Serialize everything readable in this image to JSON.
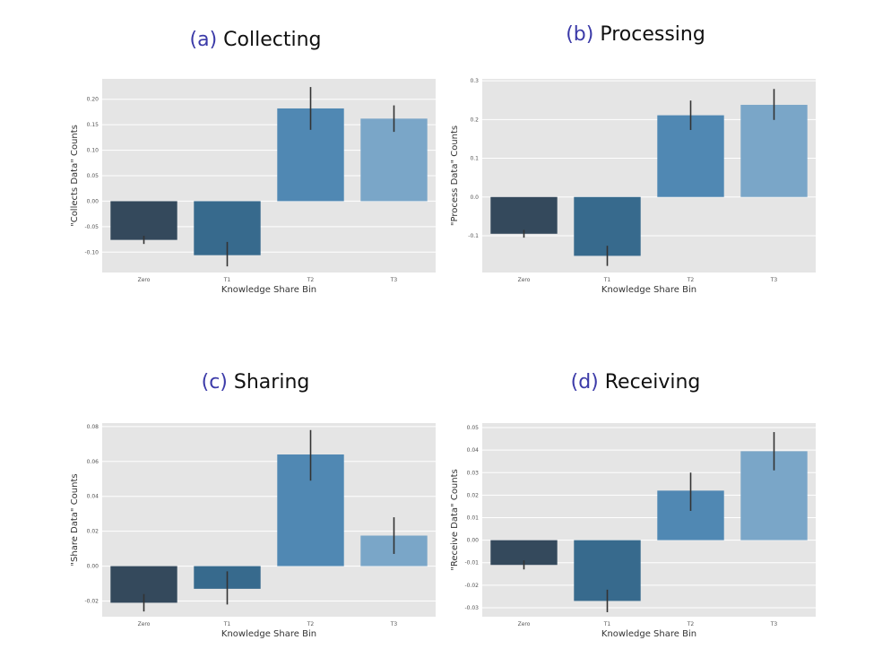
{
  "chart_data": [
    {
      "type": "bar",
      "title_letter": "(a)",
      "title_text": "Collecting",
      "xlabel": "Knowledge Share Bin",
      "ylabel": "\"Collects Data\" Counts",
      "categories": [
        "Zero",
        "T1",
        "T2",
        "T3"
      ],
      "values": [
        -0.076,
        -0.106,
        0.182,
        0.162
      ],
      "err_low": [
        -0.084,
        -0.128,
        0.14,
        0.136
      ],
      "err_high": [
        -0.068,
        -0.08,
        0.224,
        0.188
      ],
      "ylim": [
        -0.14,
        0.24
      ],
      "yticks": [
        -0.1,
        -0.05,
        0.0,
        0.05,
        0.1,
        0.15,
        0.2
      ],
      "ytick_labels": [
        "-0.10",
        "-0.05",
        "0.00",
        "0.05",
        "0.10",
        "0.15",
        "0.20"
      ],
      "grid": true,
      "bar_colors": [
        "#34495c",
        "#376a8d",
        "#5088b3",
        "#7aa6c8"
      ]
    },
    {
      "type": "bar",
      "title_letter": "(b)",
      "title_text": "Processing",
      "xlabel": "Knowledge Share Bin",
      "ylabel": "\"Process Data\" Counts",
      "categories": [
        "Zero",
        "T1",
        "T2",
        "T3"
      ],
      "values": [
        -0.095,
        -0.152,
        0.211,
        0.238
      ],
      "err_low": [
        -0.105,
        -0.178,
        0.173,
        0.199
      ],
      "err_high": [
        -0.085,
        -0.126,
        0.249,
        0.279
      ],
      "ylim": [
        -0.195,
        0.305
      ],
      "yticks": [
        -0.1,
        0.0,
        0.1,
        0.2,
        0.3
      ],
      "ytick_labels": [
        "-0.1",
        "0.0",
        "0.1",
        "0.2",
        "0.3"
      ],
      "grid": true,
      "bar_colors": [
        "#34495c",
        "#376a8d",
        "#5088b3",
        "#7aa6c8"
      ]
    },
    {
      "type": "bar",
      "title_letter": "(c)",
      "title_text": "Sharing",
      "xlabel": "Knowledge Share Bin",
      "ylabel": "\"Share Data\" Counts",
      "categories": [
        "Zero",
        "T1",
        "T2",
        "T3"
      ],
      "values": [
        -0.021,
        -0.013,
        0.064,
        0.0175
      ],
      "err_low": [
        -0.026,
        -0.022,
        0.049,
        0.007
      ],
      "err_high": [
        -0.016,
        -0.003,
        0.078,
        0.028
      ],
      "ylim": [
        -0.029,
        0.082
      ],
      "yticks": [
        -0.02,
        0.0,
        0.02,
        0.04,
        0.06,
        0.08
      ],
      "ytick_labels": [
        "-0.02",
        "0.00",
        "0.02",
        "0.04",
        "0.06",
        "0.08"
      ],
      "grid": true,
      "bar_colors": [
        "#34495c",
        "#376a8d",
        "#5088b3",
        "#7aa6c8"
      ]
    },
    {
      "type": "bar",
      "title_letter": "(d)",
      "title_text": "Receiving",
      "xlabel": "Knowledge Share Bin",
      "ylabel": "\"Receive Data\" Counts",
      "categories": [
        "Zero",
        "T1",
        "T2",
        "T3"
      ],
      "values": [
        -0.011,
        -0.027,
        0.022,
        0.0395
      ],
      "err_low": [
        -0.013,
        -0.032,
        0.013,
        0.031
      ],
      "err_high": [
        -0.009,
        -0.022,
        0.03,
        0.048
      ],
      "ylim": [
        -0.034,
        0.052
      ],
      "yticks": [
        -0.03,
        -0.02,
        -0.01,
        0.0,
        0.01,
        0.02,
        0.03,
        0.04,
        0.05
      ],
      "ytick_labels": [
        "-0.03",
        "-0.02",
        "-0.01",
        "0.00",
        "0.01",
        "0.02",
        "0.03",
        "0.04",
        "0.05"
      ],
      "grid": true,
      "bar_colors": [
        "#34495c",
        "#376a8d",
        "#5088b3",
        "#7aa6c8"
      ]
    }
  ]
}
